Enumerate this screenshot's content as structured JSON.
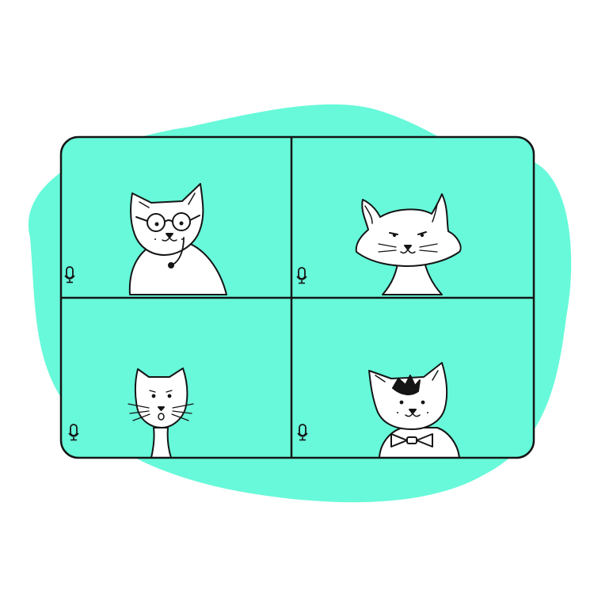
{
  "illustration": {
    "subject": "video-call-grid-with-cats",
    "colors": {
      "blob": "#67F9DA",
      "tile": "#67F9DA",
      "outline": "#151515",
      "cat": "#ffffff",
      "background": "#ffffff"
    },
    "tiles": [
      {
        "position": "top-left",
        "cat": "cat-with-glasses-and-headset",
        "mic_icon": "microphone-icon"
      },
      {
        "position": "top-right",
        "cat": "fluffy-cat",
        "mic_icon": "microphone-icon"
      },
      {
        "position": "bottom-left",
        "cat": "whiskered-cat",
        "mic_icon": "microphone-icon"
      },
      {
        "position": "bottom-right",
        "cat": "cat-with-bow-tie",
        "mic_icon": "microphone-icon"
      }
    ]
  }
}
